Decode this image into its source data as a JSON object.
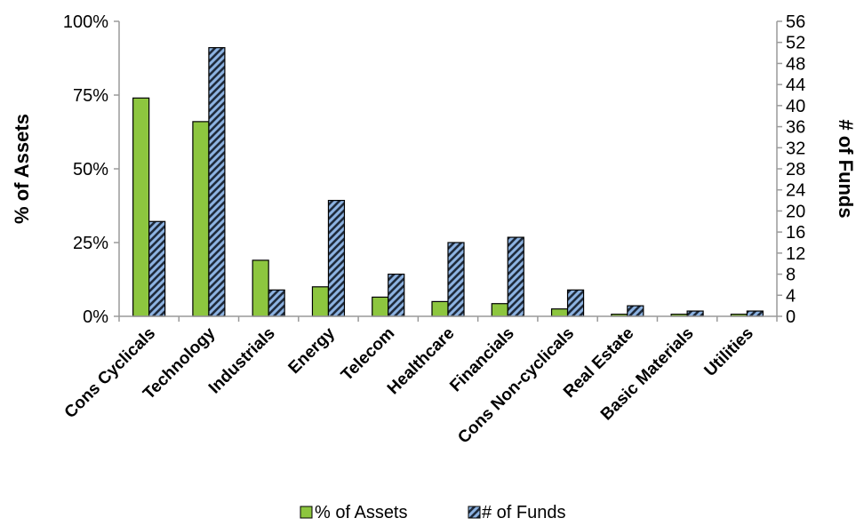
{
  "chart_data": {
    "type": "bar",
    "categories": [
      "Cons Cyclicals",
      "Technology",
      "Industrials",
      "Energy",
      "Telecom",
      "Healthcare",
      "Financials",
      "Cons Non-cyclicals",
      "Real Estate",
      "Basic Materials",
      "Utilities"
    ],
    "series": [
      {
        "name": "% of Assets",
        "axis": "left",
        "color": "#8dc63f",
        "pattern": "solid",
        "values": [
          74,
          66,
          19,
          10,
          6.5,
          5,
          4.3,
          2.5,
          0.7,
          0.7,
          0.7
        ]
      },
      {
        "name": "# of Funds",
        "axis": "right",
        "color": "#8db3e2",
        "pattern": "hatched-dark",
        "values": [
          18,
          51,
          5,
          22,
          8,
          14,
          15,
          5,
          2,
          1,
          1
        ]
      }
    ],
    "ylabel_left": "% of Assets",
    "ylabel_right": "# of Funds",
    "ylim_left": [
      0,
      100
    ],
    "ylim_right": [
      0,
      56
    ],
    "yticks_left": [
      "0%",
      "25%",
      "50%",
      "75%",
      "100%"
    ],
    "yticks_right": [
      "0",
      "4",
      "8",
      "12",
      "16",
      "20",
      "24",
      "28",
      "32",
      "36",
      "40",
      "44",
      "48",
      "52",
      "56"
    ],
    "grid": false,
    "legend": "bottom"
  }
}
